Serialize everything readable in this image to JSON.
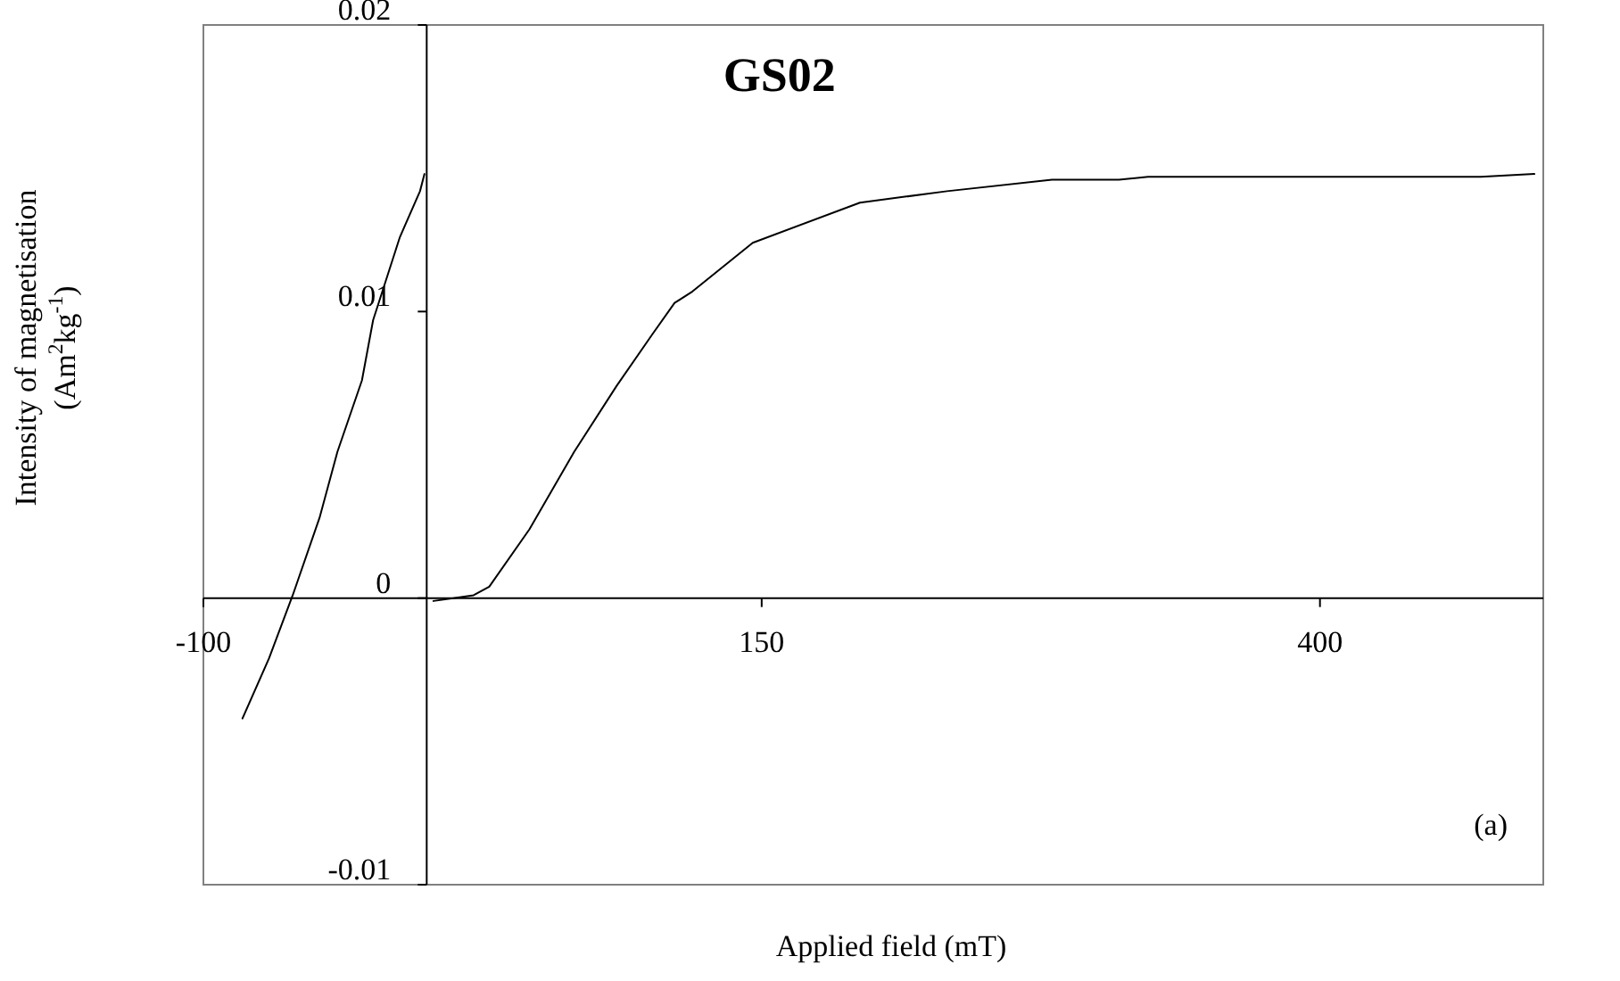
{
  "chart_data": {
    "type": "line",
    "title": "GS02",
    "xlabel": "Applied field (mT)",
    "ylabel": "Intensity of magnetisation\n(Am$^{2}$kg$^{-1}$)",
    "annotations": [
      "(a)"
    ],
    "x": [
      -82.5,
      -70.6,
      -60,
      -48,
      -40,
      -29,
      -24,
      -12,
      -3,
      -1,
      0,
      3,
      21,
      28,
      46,
      66,
      85,
      101,
      111,
      119,
      146,
      194,
      233,
      280,
      310,
      323,
      472,
      496
    ],
    "series": [
      {
        "color": "#000000",
        "values": [
          -0.0042,
          -0.0021,
          0.0001,
          0.0028,
          0.0051,
          0.0076,
          0.0097,
          0.0126,
          0.0142,
          0.0148,
          null,
          -0.0001,
          0.0001,
          0.0004,
          0.0024,
          0.0051,
          0.0074,
          0.0092,
          0.0103,
          0.0107,
          0.0124,
          0.0138,
          0.0142,
          0.0146,
          0.0146,
          0.0147,
          0.0147,
          0.0148
        ]
      }
    ],
    "xlim": [
      -100,
      500
    ],
    "ylim": [
      -0.01,
      0.02
    ],
    "xticks": [
      -100,
      150,
      400
    ],
    "yticks": [
      -0.01,
      0,
      0.01,
      0.02
    ],
    "marker": "none",
    "line_style": "solid"
  }
}
